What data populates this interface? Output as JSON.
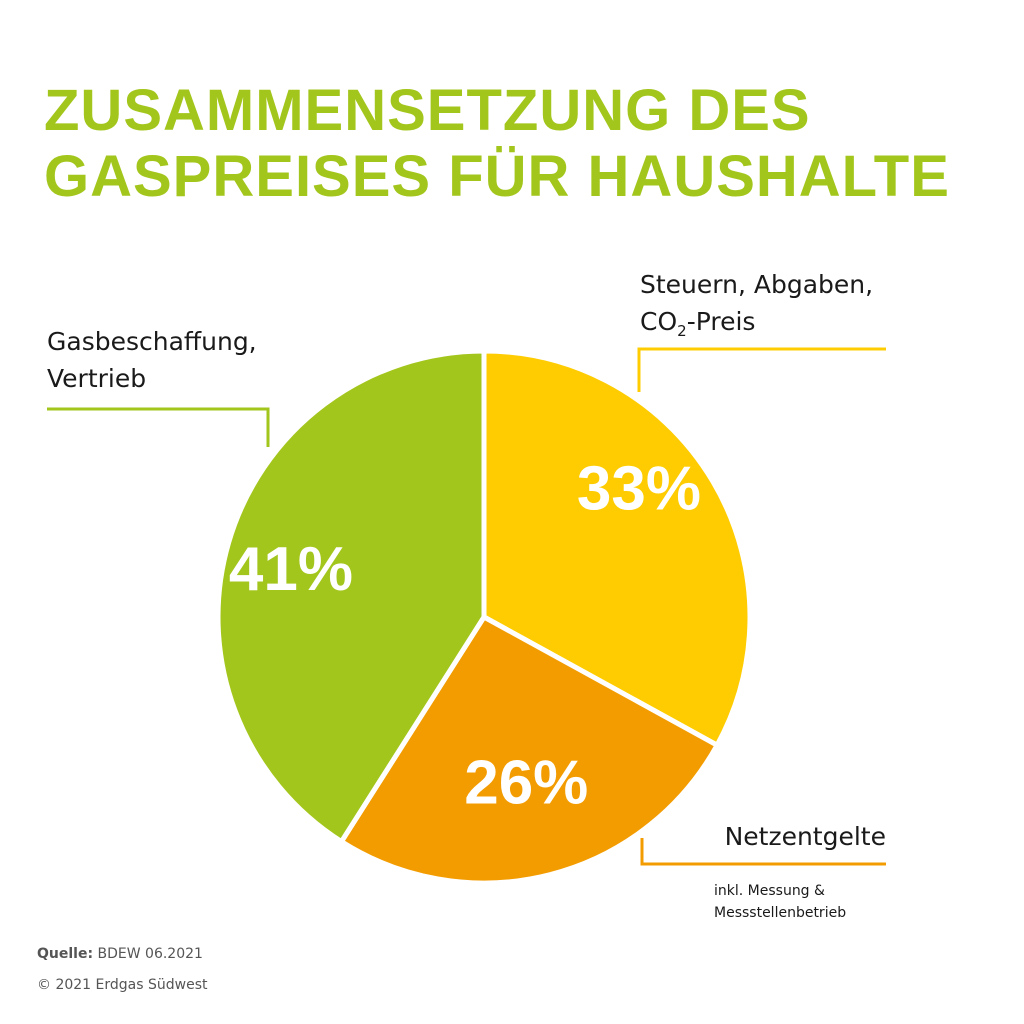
{
  "title": {
    "line1": "ZUSAMMENSETZUNG DES",
    "line2": "GASPREISES FÜR HAUSHALTE"
  },
  "chart_data": {
    "type": "pie",
    "title": "ZUSAMMENSETZUNG DES GASPREISES FÜR HAUSHALTE",
    "unit": "%",
    "slices": [
      {
        "label": "Steuern, Abgaben, CO2-Preis",
        "value": 33,
        "display": "33%",
        "color": "#fecc00"
      },
      {
        "label": "Netzentgelte",
        "note": "inkl. Messung & Messstellenbetrieb",
        "value": 26,
        "display": "26%",
        "color": "#f39c00"
      },
      {
        "label": "Gasbeschaffung, Vertrieb",
        "value": 41,
        "display": "41%",
        "color": "#a3c61c"
      }
    ]
  },
  "labels": {
    "steuern_line1": "Steuern, Abgaben,",
    "steuern_co": "CO",
    "steuern_sub": "2",
    "steuern_rest": "-Preis",
    "gas_line1": "Gasbeschaffung,",
    "gas_line2": "Vertrieb",
    "netz": "Netzentgelte",
    "netz_sub1": "inkl. Messung &",
    "netz_sub2": "Messstellenbetrieb"
  },
  "footer": {
    "source_label": "Quelle:",
    "source_value": "BDEW 06.2021",
    "copyright": "© 2021 Erdgas Südwest"
  },
  "colors": {
    "title": "#a3c61c",
    "gas": "#a3c61c",
    "steuern": "#fecc00",
    "netz": "#f39c00"
  }
}
